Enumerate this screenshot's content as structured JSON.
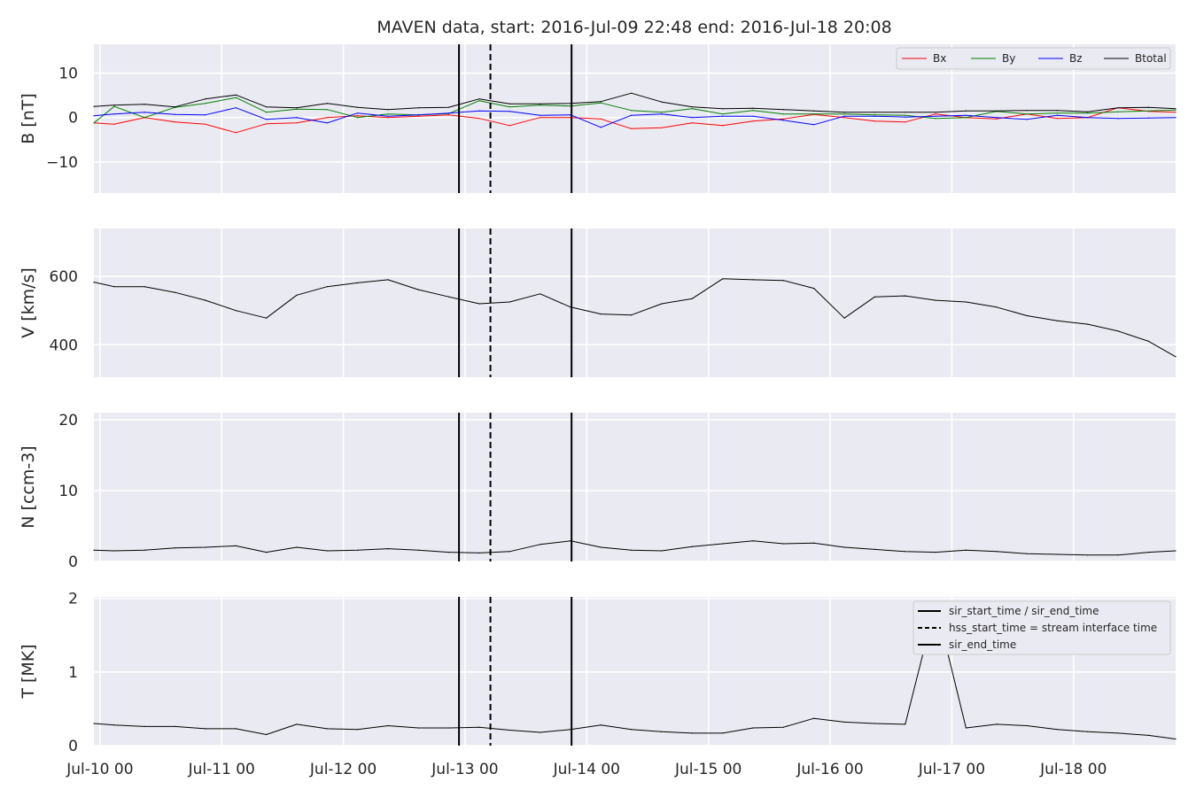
{
  "chart_data": {
    "type": "line",
    "title": "MAVEN data, start: 2016-Jul-09 22:48  end: 2016-Jul-18 20:08",
    "x_axis": {
      "range": [
        "2016-07-09 22:48",
        "2016-07-18 20:08"
      ],
      "tick_labels": [
        "Jul-10 00",
        "Jul-11 00",
        "Jul-12 00",
        "Jul-13 00",
        "Jul-14 00",
        "Jul-15 00",
        "Jul-16 00",
        "Jul-17 00",
        "Jul-18 00"
      ]
    },
    "grid": true,
    "x": [
      "2016-07-09 22:48",
      "2016-07-10 02:48",
      "2016-07-10 08:48",
      "2016-07-10 14:48",
      "2016-07-10 20:48",
      "2016-07-11 02:48",
      "2016-07-11 08:48",
      "2016-07-11 14:48",
      "2016-07-11 20:48",
      "2016-07-12 02:48",
      "2016-07-12 08:48",
      "2016-07-12 14:48",
      "2016-07-12 20:48",
      "2016-07-13 02:48",
      "2016-07-13 08:48",
      "2016-07-13 14:48",
      "2016-07-13 20:48",
      "2016-07-14 02:48",
      "2016-07-14 08:48",
      "2016-07-14 14:48",
      "2016-07-14 20:48",
      "2016-07-15 02:48",
      "2016-07-15 08:48",
      "2016-07-15 14:48",
      "2016-07-15 20:48",
      "2016-07-16 02:48",
      "2016-07-16 08:48",
      "2016-07-16 14:48",
      "2016-07-16 20:48",
      "2016-07-17 02:48",
      "2016-07-17 08:48",
      "2016-07-17 14:48",
      "2016-07-17 20:48",
      "2016-07-18 02:48",
      "2016-07-18 08:48",
      "2016-07-18 14:48",
      "2016-07-18 20:08"
    ],
    "panels": [
      {
        "ylabel": "B [nT]",
        "ylim": [
          -17,
          16.5
        ],
        "yticks": [
          -10,
          0,
          10
        ],
        "legend": "top-right",
        "series": [
          {
            "name": "Bx",
            "color": "#ff0000",
            "values": [
              -1.2,
              -1.5,
              0,
              -1,
              -1.5,
              -3.4,
              -1.4,
              -1.2,
              0,
              0.4,
              0,
              0.3,
              0.6,
              -0.2,
              -1.8,
              0,
              0,
              -0.3,
              -2.5,
              -2.3,
              -1.2,
              -1.8,
              -0.8,
              -0.3,
              0.7,
              0,
              -0.8,
              -1,
              0.8,
              0,
              -0.3,
              0.8,
              -0.2,
              0,
              2.2,
              1.4,
              1.2
            ]
          },
          {
            "name": "By",
            "color": "#008000",
            "values": [
              -1.2,
              2.5,
              0,
              2.3,
              3.2,
              4.5,
              1.2,
              1.9,
              1.8,
              0,
              0.8,
              0.6,
              0.9,
              3.8,
              2.4,
              2.8,
              2.6,
              3.3,
              1.6,
              1.2,
              2,
              0.8,
              1.6,
              0.8,
              0.8,
              0.8,
              0.6,
              0.5,
              -0.2,
              0,
              1.4,
              0.8,
              1,
              1,
              1.3,
              1.5,
              1.7
            ]
          },
          {
            "name": "Bz",
            "color": "#0000ff",
            "values": [
              0.4,
              0.8,
              1.2,
              0.7,
              0.6,
              2.2,
              -0.4,
              0,
              -1.2,
              1,
              0.3,
              0.6,
              1,
              1.5,
              1.4,
              0.5,
              0.6,
              -2.2,
              0.5,
              0.8,
              0,
              0.3,
              0.3,
              -0.6,
              -1.6,
              0.3,
              0.3,
              0.1,
              0.3,
              0.5,
              0,
              -0.4,
              0.5,
              0,
              -0.2,
              -0.1,
              0
            ]
          },
          {
            "name": "Btotal",
            "color": "#000000",
            "values": [
              2.5,
              2.8,
              3,
              2.4,
              4.2,
              5.1,
              2.4,
              2.2,
              3.2,
              2.3,
              1.8,
              2.2,
              2.3,
              4.2,
              3.1,
              3.1,
              3.2,
              3.6,
              5.5,
              3.5,
              2.4,
              2,
              2.1,
              1.8,
              1.5,
              1.2,
              1.2,
              1.2,
              1.2,
              1.5,
              1.5,
              1.6,
              1.6,
              1.3,
              2.2,
              2.3,
              2.0
            ]
          }
        ]
      },
      {
        "ylabel": "V [km/s]",
        "ylim": [
          305,
          740
        ],
        "yticks": [
          400,
          600
        ],
        "series": [
          {
            "name": "",
            "color": "#000000",
            "values": [
              583,
              570,
              570,
              553,
              530,
              500,
              478,
              545,
              570,
              581,
              590,
              561,
              540,
              520,
              525,
              549,
              510,
              490,
              487,
              520,
              535,
              593,
              590,
              588,
              565,
              478,
              540,
              543,
              530,
              525,
              510,
              485,
              470,
              460,
              440,
              410,
              365
            ]
          }
        ]
      },
      {
        "ylabel": "N [ccm-3]",
        "ylim": [
          0,
          21
        ],
        "yticks": [
          0,
          10,
          20
        ],
        "series": [
          {
            "name": "",
            "color": "#000000",
            "values": [
              1.6,
              1.5,
              1.6,
              1.9,
              2.0,
              2.2,
              1.3,
              2.0,
              1.5,
              1.6,
              1.8,
              1.6,
              1.3,
              1.2,
              1.4,
              2.4,
              2.9,
              2.0,
              1.6,
              1.5,
              2.1,
              2.5,
              2.9,
              2.5,
              2.6,
              2.0,
              1.7,
              1.4,
              1.3,
              1.6,
              1.4,
              1.1,
              1.0,
              0.9,
              0.9,
              1.3,
              1.5
            ]
          }
        ]
      },
      {
        "ylabel": "T [MK]",
        "ylim": [
          0,
          2.02
        ],
        "yticks": [
          0,
          1,
          2
        ],
        "legend": "top-right",
        "series": [
          {
            "name": "",
            "color": "#000000",
            "values": [
              0.3,
              0.28,
              0.26,
              0.26,
              0.23,
              0.23,
              0.15,
              0.29,
              0.23,
              0.22,
              0.27,
              0.24,
              0.24,
              0.25,
              0.21,
              0.18,
              0.22,
              0.28,
              0.22,
              0.19,
              0.17,
              0.17,
              0.24,
              0.25,
              0.37,
              0.32,
              0.3,
              0.29,
              1.93,
              0.24,
              0.29,
              0.27,
              0.22,
              0.19,
              0.17,
              0.14,
              0.09
            ]
          }
        ]
      }
    ],
    "event_lines": [
      {
        "label": "sir_start_time / sir_end_time",
        "style": "solid",
        "time": "2016-07-12 22:48"
      },
      {
        "label": "hss_start_time = stream interface time",
        "style": "dashed",
        "time": "2016-07-13 05:00"
      },
      {
        "label": "sir_end_time",
        "style": "solid",
        "time": "2016-07-13 21:00"
      }
    ]
  }
}
